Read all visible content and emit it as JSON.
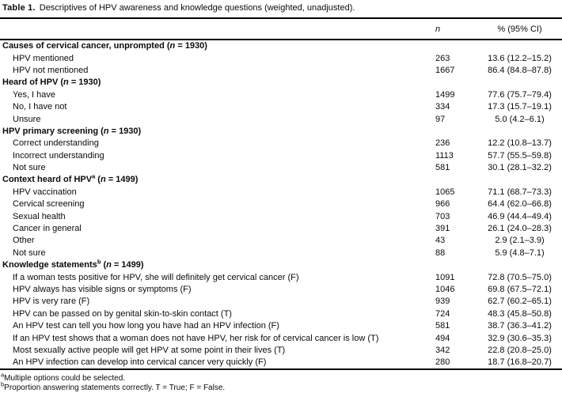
{
  "caption": {
    "label": "Table 1.",
    "text": "Descriptives of HPV awareness and knowledge questions (weighted, unadjusted)."
  },
  "columns": {
    "n": "n",
    "pct": "% (95% CI)"
  },
  "symbols": {
    "n": "n",
    "equals": " = "
  },
  "rows": [
    {
      "type": "section",
      "label": "Causes of cervical cancer, unprompted",
      "sup": "",
      "n_eq": "1930"
    },
    {
      "type": "item",
      "label": "HPV mentioned",
      "n": "263",
      "pct": "13.6 (12.2–15.2)"
    },
    {
      "type": "item",
      "label": "HPV not mentioned",
      "n": "1667",
      "pct": "86.4 (84.8–87.8)"
    },
    {
      "type": "section",
      "label": "Heard of HPV",
      "sup": "",
      "n_eq": "1930"
    },
    {
      "type": "item",
      "label": "Yes, I have",
      "n": "1499",
      "pct": "77.6 (75.7–79.4)"
    },
    {
      "type": "item",
      "label": "No, I have not",
      "n": "334",
      "pct": "17.3 (15.7–19.1)"
    },
    {
      "type": "item",
      "label": "Unsure",
      "n": "97",
      "pct": "5.0 (4.2–6.1)"
    },
    {
      "type": "section",
      "label": "HPV primary screening",
      "sup": "",
      "n_eq": "1930"
    },
    {
      "type": "item",
      "label": "Correct understanding",
      "n": "236",
      "pct": "12.2 (10.8–13.7)"
    },
    {
      "type": "item",
      "label": "Incorrect understanding",
      "n": "1113",
      "pct": "57.7 (55.5–59.8)"
    },
    {
      "type": "item",
      "label": "Not sure",
      "n": "581",
      "pct": "30.1 (28.1–32.2)"
    },
    {
      "type": "section",
      "label": "Context heard of HPV",
      "sup": "a",
      "n_eq": "1499"
    },
    {
      "type": "item",
      "label": "HPV vaccination",
      "n": "1065",
      "pct": "71.1 (68.7–73.3)"
    },
    {
      "type": "item",
      "label": "Cervical screening",
      "n": "966",
      "pct": "64.4 (62.0–66.8)"
    },
    {
      "type": "item",
      "label": "Sexual health",
      "n": "703",
      "pct": "46.9 (44.4–49.4)"
    },
    {
      "type": "item",
      "label": "Cancer in general",
      "n": "391",
      "pct": "26.1 (24.0–28.3)"
    },
    {
      "type": "item",
      "label": "Other",
      "n": "43",
      "pct": "2.9 (2.1–3.9)"
    },
    {
      "type": "item",
      "label": "Not sure",
      "n": "88",
      "pct": "5.9 (4.8–7.1)"
    },
    {
      "type": "section",
      "label": "Knowledge statements",
      "sup": "b",
      "n_eq": "1499"
    },
    {
      "type": "item",
      "label": "If a woman tests positive for HPV, she will definitely get cervical cancer (F)",
      "n": "1091",
      "pct": "72.8 (70.5–75.0)"
    },
    {
      "type": "item",
      "label": "HPV always has visible signs or symptoms (F)",
      "n": "1046",
      "pct": "69.8 (67.5–72.1)"
    },
    {
      "type": "item",
      "label": "HPV is very rare (F)",
      "n": "939",
      "pct": "62.7 (60.2–65.1)"
    },
    {
      "type": "item",
      "label": "HPV can be passed on by genital skin-to-skin contact (T)",
      "n": "724",
      "pct": "48.3 (45.8–50.8)"
    },
    {
      "type": "item",
      "label": "An HPV test can tell you how long you have had an HPV infection (F)",
      "n": "581",
      "pct": "38.7 (36.3–41.2)"
    },
    {
      "type": "item",
      "label": "If an HPV test shows that a woman does not have HPV, her risk for of cervical cancer is low (T)",
      "n": "494",
      "pct": "32.9 (30.6–35.3)"
    },
    {
      "type": "item",
      "label": "Most sexually active people will get HPV at some point in their lives (T)",
      "n": "342",
      "pct": "22.8 (20.8–25.0)"
    },
    {
      "type": "item",
      "label": "An HPV infection can develop into cervical cancer very quickly (F)",
      "n": "280",
      "pct": "18.7 (16.8–20.7)"
    }
  ],
  "footnotes": [
    {
      "sup": "a",
      "text": "Multiple options could be selected."
    },
    {
      "sup": "b",
      "text": "Proportion answering statements correctly. T = True; F = False."
    }
  ]
}
